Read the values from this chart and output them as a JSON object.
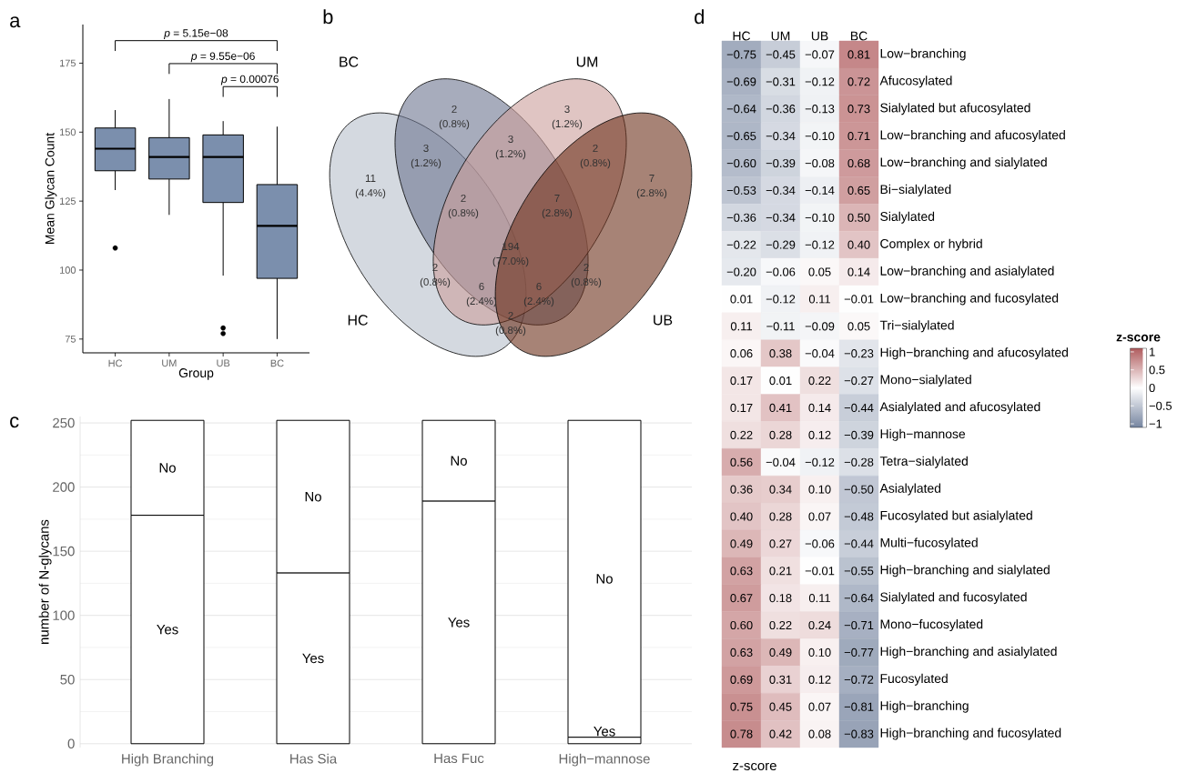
{
  "chart_data": [
    {
      "type": "box",
      "title": "a",
      "xlabel": "Group",
      "ylabel": "Mean Glycan Count",
      "categories": [
        "HC",
        "UM",
        "UB",
        "BC"
      ],
      "color": "#7b8fad",
      "boxes": [
        {
          "low": 129,
          "q1": 136,
          "median": 144,
          "q3": 151.5,
          "high": 158,
          "outliers": [
            108
          ]
        },
        {
          "low": 120,
          "q1": 133,
          "median": 141,
          "q3": 148,
          "high": 162
        },
        {
          "low": 98,
          "q1": 124.5,
          "median": 141,
          "q3": 149,
          "high": 154,
          "outliers": [
            79,
            77
          ]
        },
        {
          "low": 75,
          "q1": 97,
          "median": 116,
          "q3": 131,
          "high": 152
        }
      ],
      "ylim": [
        70,
        189
      ],
      "yticks": [
        75,
        100,
        125,
        150,
        175
      ],
      "annotations": [
        "*p* = 5.15e−08",
        "*p* = 9.55e−06",
        "*p* = 0.00076"
      ]
    },
    {
      "type": "other",
      "title": "b",
      "categories": [
        "HC",
        "BC",
        "UM",
        "UB"
      ],
      "colors": [
        "#b7c0cb",
        "#6c758f",
        "#cb9e9b",
        "#6c301b"
      ],
      "annotations": [
        "11",
        "(4.4%)",
        "2",
        "(0.8%)",
        "3",
        "(1.2%)",
        "7",
        "(2.8%)",
        "3",
        "(1.2%)",
        "3",
        "(1.2%)",
        "2",
        "(0.8%)",
        "2",
        "(0.8%)",
        "7",
        "(2.8%)",
        "194",
        "(77.0%)",
        "2",
        "(0.8%)",
        "2",
        "(0.8%)",
        "6",
        "(2.4%)",
        "6",
        "(2.4%)",
        "2",
        "(0.8%)"
      ]
    },
    {
      "type": "bar",
      "title": "c",
      "ylabel": "number of N-glycans",
      "categories": [
        "High Branching",
        "Has Sia",
        "Has Fuc",
        "High−mannose"
      ],
      "stacked": true,
      "series": [
        {
          "name": "Yes",
          "color": "#ffffff",
          "values": [
            178,
            133,
            189,
            5
          ]
        },
        {
          "name": "No",
          "color": "#ffffff",
          "values": [
            74,
            119,
            63,
            247
          ]
        }
      ],
      "ylim": [
        -3,
        255
      ],
      "yticks": [
        0,
        50,
        100,
        150,
        200,
        250
      ],
      "grid": "y",
      "legend": false
    },
    {
      "type": "heatmap",
      "title": "d",
      "xlabel": "z-score",
      "clabel": "z-score",
      "categories": [
        "HC",
        "UM",
        "UB",
        "BC"
      ],
      "y_categories": [
        "Low−branching",
        "Afucosylated",
        "Sialylated but afucosylated",
        "Low−branching and afucosylated",
        "Low−branching and sialylated",
        "Bi−sialylated",
        "Sialylated",
        "Complex or hybrid",
        "Low−branching and asialylated",
        "Low−branching and fucosylated",
        "Tri−sialylated",
        "High−branching and afucosylated",
        "Mono−sialylated",
        "Asialylated and afucosylated",
        "High−mannose",
        "Tetra−sialylated",
        "Asialylated",
        "Fucosylated but asialylated",
        "Multi−fucosylated",
        "High−branching and sialylated",
        "Sialylated and fucosylated",
        "Mono−fucosylated",
        "High−branching and asialylated",
        "Fucosylated",
        "High−branching",
        "High−branching and fucosylated"
      ],
      "cells": [
        [
          -0.75,
          -0.45,
          -0.07,
          0.81
        ],
        [
          -0.69,
          -0.31,
          -0.12,
          0.72
        ],
        [
          -0.64,
          -0.36,
          -0.13,
          0.73
        ],
        [
          -0.65,
          -0.34,
          -0.1,
          0.71
        ],
        [
          -0.6,
          -0.39,
          -0.08,
          0.68
        ],
        [
          -0.53,
          -0.34,
          -0.14,
          0.65
        ],
        [
          -0.36,
          -0.34,
          -0.1,
          0.5
        ],
        [
          -0.22,
          -0.29,
          -0.12,
          0.4
        ],
        [
          -0.2,
          -0.06,
          0.05,
          0.14
        ],
        [
          0.01,
          -0.12,
          0.11,
          -0.01
        ],
        [
          0.11,
          -0.11,
          -0.09,
          0.05
        ],
        [
          0.06,
          0.38,
          -0.04,
          -0.23
        ],
        [
          0.17,
          0.01,
          0.22,
          -0.27
        ],
        [
          0.17,
          0.41,
          0.14,
          -0.44
        ],
        [
          0.22,
          0.28,
          0.12,
          -0.39
        ],
        [
          0.56,
          -0.04,
          -0.12,
          -0.28
        ],
        [
          0.36,
          0.34,
          0.1,
          -0.5
        ],
        [
          0.4,
          0.28,
          0.07,
          -0.48
        ],
        [
          0.49,
          0.27,
          -0.06,
          -0.44
        ],
        [
          0.63,
          0.21,
          -0.01,
          -0.55
        ],
        [
          0.67,
          0.18,
          0.11,
          -0.64
        ],
        [
          0.6,
          0.22,
          0.24,
          -0.71
        ],
        [
          0.63,
          0.49,
          0.1,
          -0.77
        ],
        [
          0.69,
          0.31,
          0.12,
          -0.72
        ],
        [
          0.75,
          0.45,
          0.07,
          -0.81
        ],
        [
          0.78,
          0.42,
          0.08,
          -0.83
        ]
      ],
      "cell_labels": [
        [
          "−0.75",
          "−0.45",
          "−0.07",
          "0.81"
        ],
        [
          "−0.69",
          "−0.31",
          "−0.12",
          "0.72"
        ],
        [
          "−0.64",
          "−0.36",
          "−0.13",
          "0.73"
        ],
        [
          "−0.65",
          "−0.34",
          "−0.10",
          "0.71"
        ],
        [
          "−0.60",
          "−0.39",
          "−0.08",
          "0.68"
        ],
        [
          "−0.53",
          "−0.34",
          "−0.14",
          "0.65"
        ],
        [
          "−0.36",
          "−0.34",
          "−0.10",
          "0.50"
        ],
        [
          "−0.22",
          "−0.29",
          "−0.12",
          "0.40"
        ],
        [
          "−0.20",
          "−0.06",
          "0.05",
          "0.14"
        ],
        [
          "0.01",
          "−0.12",
          "0.11",
          "−0.01"
        ],
        [
          "0.11",
          "−0.11",
          "−0.09",
          "0.05"
        ],
        [
          "0.06",
          "0.38",
          "−0.04",
          "−0.23"
        ],
        [
          "0.17",
          "0.01",
          "0.22",
          "−0.27"
        ],
        [
          "0.17",
          "0.41",
          "0.14",
          "−0.44"
        ],
        [
          "0.22",
          "0.28",
          "0.12",
          "−0.39"
        ],
        [
          "0.56",
          "−0.04",
          "−0.12",
          "−0.28"
        ],
        [
          "0.36",
          "0.34",
          "0.10",
          "−0.50"
        ],
        [
          "0.40",
          "0.28",
          "0.07",
          "−0.48"
        ],
        [
          "0.49",
          "0.27",
          "−0.06",
          "−0.44"
        ],
        [
          "0.63",
          "0.21",
          "−0.01",
          "−0.55"
        ],
        [
          "0.67",
          "0.18",
          "0.11",
          "−0.64"
        ],
        [
          "0.60",
          "0.22",
          "0.24",
          "−0.71"
        ],
        [
          "0.63",
          "0.49",
          "0.10",
          "−0.77"
        ],
        [
          "0.69",
          "0.31",
          "0.12",
          "−0.72"
        ],
        [
          "0.75",
          "0.45",
          "0.07",
          "−0.81"
        ],
        [
          "0.78",
          "0.42",
          "0.08",
          "−0.83"
        ]
      ],
      "clim": [
        -1.1,
        1.1
      ],
      "cticks": [
        1,
        0.5,
        0,
        {
          "value": -0.5,
          "label": "−0.5"
        },
        {
          "value": -1,
          "label": "−1"
        }
      ]
    }
  ]
}
